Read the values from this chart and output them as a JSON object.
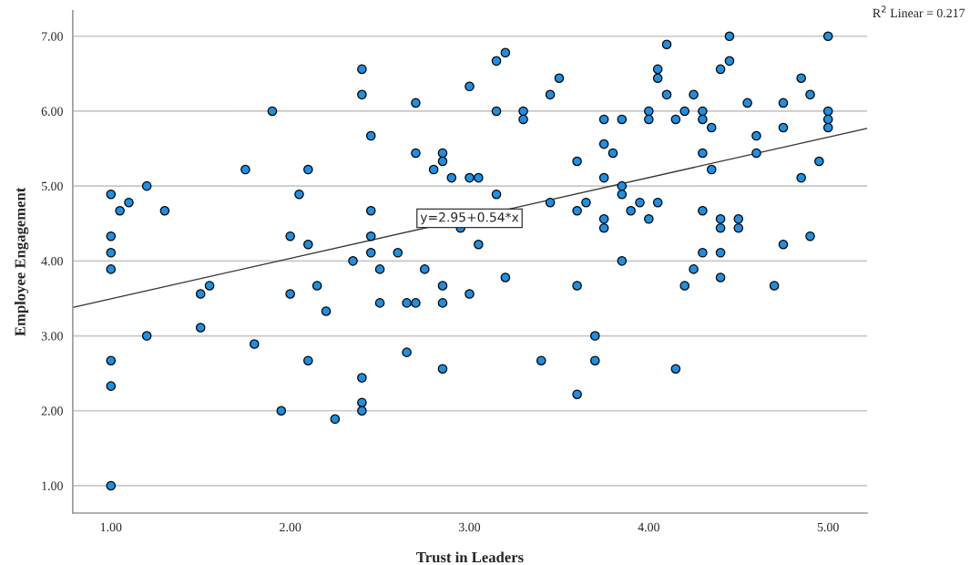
{
  "chart_data": {
    "type": "scatter",
    "xlabel": "Trust in Leaders",
    "ylabel": "Employee Engagement",
    "xlim": [
      0.787,
      5.218
    ],
    "ylim": [
      0.635,
      7.34
    ],
    "xticks": [
      {
        "value": 1,
        "label": "1.00"
      },
      {
        "value": 2,
        "label": "2.00"
      },
      {
        "value": 3,
        "label": "3.00"
      },
      {
        "value": 4,
        "label": "4.00"
      },
      {
        "value": 5,
        "label": "5.00"
      }
    ],
    "yticks": [
      {
        "value": 1,
        "label": "1.00"
      },
      {
        "value": 2,
        "label": "2.00"
      },
      {
        "value": 3,
        "label": "3.00"
      },
      {
        "value": 4,
        "label": "4.00"
      },
      {
        "value": 5,
        "label": "5.00"
      },
      {
        "value": 6,
        "label": "6.00"
      },
      {
        "value": 7,
        "label": "7.00"
      }
    ],
    "grid": "y",
    "marker": "circle",
    "legend": false,
    "series": [
      {
        "color": "#1e8fe1",
        "x": [
          1.0,
          1.0,
          1.0,
          1.0,
          1.0,
          1.0,
          1.0,
          1.05,
          1.1,
          1.2,
          1.2,
          1.3,
          1.5,
          1.5,
          1.55,
          1.75,
          1.8,
          1.9,
          1.95,
          2.0,
          2.0,
          2.05,
          2.1,
          2.1,
          2.1,
          2.15,
          2.2,
          2.25,
          2.35,
          2.4,
          2.4,
          2.4,
          2.4,
          2.4,
          2.45,
          2.45,
          2.45,
          2.45,
          2.5,
          2.5,
          2.6,
          2.65,
          2.65,
          2.7,
          2.7,
          2.7,
          2.75,
          2.8,
          2.85,
          2.85,
          2.85,
          2.85,
          2.85,
          2.9,
          2.95,
          3.0,
          3.0,
          3.0,
          3.05,
          3.05,
          3.15,
          3.15,
          3.15,
          3.2,
          3.2,
          3.3,
          3.3,
          3.4,
          3.45,
          3.45,
          3.5,
          3.6,
          3.6,
          3.6,
          3.6,
          3.65,
          3.7,
          3.7,
          3.75,
          3.75,
          3.75,
          3.75,
          3.75,
          3.8,
          3.85,
          3.85,
          3.85,
          3.85,
          3.9,
          3.95,
          4.0,
          4.0,
          4.0,
          4.05,
          4.05,
          4.05,
          4.1,
          4.1,
          4.15,
          4.15,
          4.2,
          4.2,
          4.25,
          4.25,
          4.3,
          4.3,
          4.3,
          4.3,
          4.3,
          4.35,
          4.35,
          4.4,
          4.4,
          4.4,
          4.4,
          4.4,
          4.45,
          4.45,
          4.5,
          4.5,
          4.55,
          4.6,
          4.6,
          4.7,
          4.75,
          4.75,
          4.75,
          4.85,
          4.85,
          4.9,
          4.9,
          4.95,
          5.0,
          5.0,
          5.0,
          5.0
        ],
        "values": [
          4.89,
          4.33,
          4.11,
          3.89,
          2.67,
          2.33,
          1.0,
          4.67,
          4.78,
          5.0,
          3.0,
          4.67,
          3.56,
          3.11,
          3.67,
          5.22,
          2.89,
          6.0,
          2.0,
          4.33,
          3.56,
          4.89,
          5.22,
          4.22,
          2.67,
          3.67,
          3.33,
          1.89,
          4.0,
          6.56,
          6.22,
          2.44,
          2.11,
          2.0,
          5.67,
          4.67,
          4.33,
          4.11,
          3.89,
          3.44,
          4.11,
          3.44,
          2.78,
          6.11,
          5.44,
          3.44,
          3.89,
          5.22,
          5.44,
          5.33,
          3.67,
          3.44,
          2.56,
          5.11,
          4.44,
          6.33,
          5.11,
          3.56,
          5.11,
          4.22,
          6.67,
          6.0,
          4.89,
          6.78,
          3.78,
          6.0,
          5.89,
          2.67,
          6.22,
          4.78,
          6.44,
          5.33,
          4.67,
          3.67,
          2.22,
          4.78,
          3.0,
          2.67,
          5.89,
          5.56,
          5.11,
          4.56,
          4.44,
          5.44,
          5.89,
          5.0,
          4.89,
          4.0,
          4.67,
          4.78,
          6.0,
          5.89,
          4.56,
          6.56,
          6.44,
          4.78,
          6.89,
          6.22,
          5.89,
          2.56,
          6.0,
          3.67,
          6.22,
          3.89,
          6.0,
          5.89,
          5.44,
          4.67,
          4.11,
          5.78,
          5.22,
          6.56,
          4.56,
          4.44,
          4.11,
          3.78,
          7.0,
          6.67,
          4.56,
          4.44,
          6.11,
          5.67,
          5.44,
          3.67,
          6.11,
          5.78,
          4.22,
          6.44,
          5.11,
          6.22,
          4.33,
          5.33,
          7.0,
          6.0,
          5.89,
          5.78
        ]
      },
      {
        "type": "line",
        "color": "#333333",
        "line_style": "solid",
        "marker": "none",
        "x": [
          0.787,
          5.218
        ],
        "values": [
          3.38,
          5.77
        ]
      }
    ],
    "annotations": [
      {
        "text": "y=2.95+0.54*x",
        "x": 3.0,
        "y": 4.57
      },
      "R$^{2}$ Linear = 0.217"
    ]
  }
}
